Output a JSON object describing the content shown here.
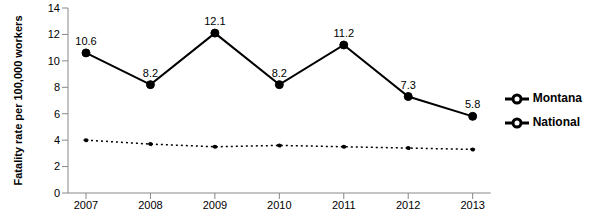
{
  "chart_data": {
    "type": "line",
    "y_label": "Fatality rate per 100,000 workers",
    "categories": [
      "2007",
      "2008",
      "2009",
      "2010",
      "2011",
      "2012",
      "2013"
    ],
    "series": [
      {
        "name": "Montana",
        "color": "#000000",
        "values": [
          10.6,
          8.2,
          12.1,
          8.2,
          11.2,
          7.3,
          5.8
        ],
        "marker": "circle",
        "line_style": "solid",
        "data_labels": true
      },
      {
        "name": "National",
        "color": "#000000",
        "values": [
          4.0,
          3.7,
          3.5,
          3.6,
          3.5,
          3.4,
          3.3
        ],
        "marker": "circle",
        "line_style": "dotted",
        "data_labels": false
      }
    ],
    "ylim": [
      0,
      14
    ],
    "yticks": [
      0,
      2,
      4,
      6,
      8,
      10,
      12,
      14
    ],
    "grid": false,
    "legend": "right"
  }
}
